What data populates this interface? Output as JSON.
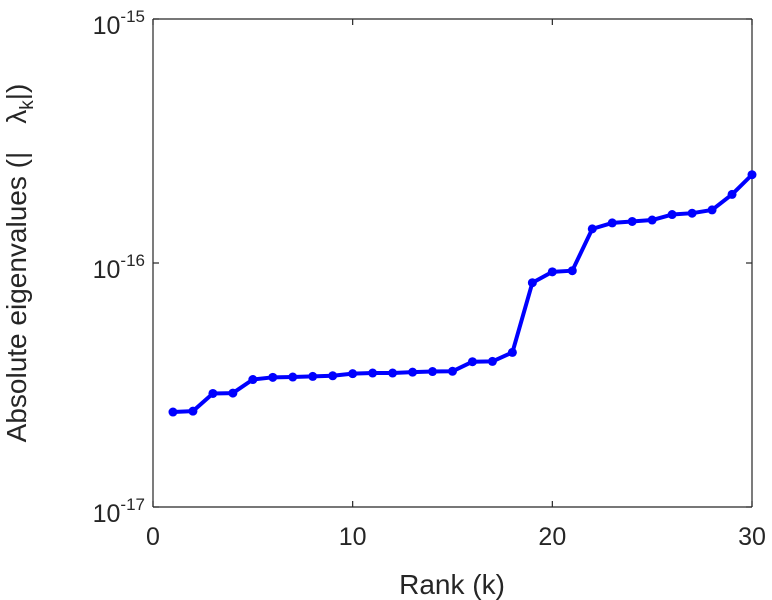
{
  "chart_data": {
    "type": "line",
    "title": "",
    "xlabel": "Rank (k)",
    "ylabel": {
      "prefix": "Absolute eigenvalues (|",
      "symbol": "λ",
      "subscript": "k",
      "suffix": "|)"
    },
    "xlim": [
      0,
      30
    ],
    "ylim": [
      1e-17,
      1e-15
    ],
    "yscale": "log",
    "grid": false,
    "x_ticks": [
      {
        "value": 0,
        "label": "0"
      },
      {
        "value": 10,
        "label": "10"
      },
      {
        "value": 20,
        "label": "20"
      },
      {
        "value": 30,
        "label": "30"
      }
    ],
    "y_ticks": [
      {
        "value": 1e-17,
        "base": "10",
        "exponent": "-17"
      },
      {
        "value": 1e-16,
        "base": "10",
        "exponent": "-16"
      },
      {
        "value": 1e-15,
        "base": "10",
        "exponent": "-15"
      }
    ],
    "series": [
      {
        "color": "#0000ff",
        "marker": "dot",
        "x": [
          1,
          2,
          3,
          4,
          5,
          6,
          7,
          8,
          9,
          10,
          11,
          12,
          13,
          14,
          15,
          16,
          17,
          18,
          19,
          20,
          21,
          22,
          23,
          24,
          25,
          26,
          27,
          28,
          29,
          30
        ],
        "values": [
          2.45e-17,
          2.47e-17,
          2.92e-17,
          2.93e-17,
          3.33e-17,
          3.4e-17,
          3.41e-17,
          3.43e-17,
          3.45e-17,
          3.52e-17,
          3.54e-17,
          3.54e-17,
          3.57e-17,
          3.59e-17,
          3.6e-17,
          3.94e-17,
          3.95e-17,
          4.3e-17,
          8.3e-17,
          9.2e-17,
          9.3e-17,
          1.38e-16,
          1.46e-16,
          1.48e-16,
          1.5e-16,
          1.58e-16,
          1.6e-16,
          1.65e-16,
          1.91e-16,
          2.3e-16
        ]
      }
    ]
  }
}
